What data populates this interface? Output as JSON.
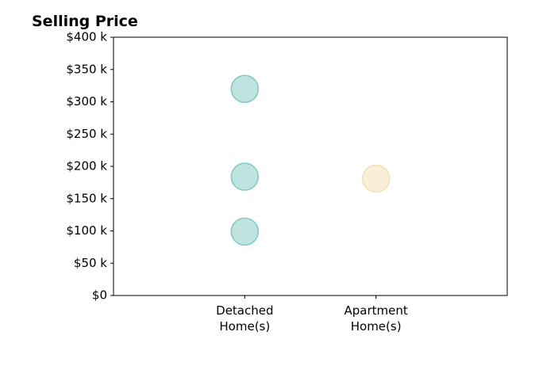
{
  "chart_data": {
    "type": "scatter",
    "title": "Selling Price",
    "categories": [
      "Detached\nHome(s)",
      "Apartment\nHome(s)"
    ],
    "series": [
      {
        "color": "#80c9c1",
        "x": [
          "Detached\nHome(s)",
          "Detached\nHome(s)",
          "Detached\nHome(s)"
        ],
        "values": [
          320000,
          184000,
          99000
        ]
      },
      {
        "color": "#f3dfb1",
        "x": [
          "Apartment\nHome(s)"
        ],
        "values": [
          181000
        ]
      }
    ],
    "ylim": [
      0,
      400000
    ],
    "yticks": [
      {
        "value": 0,
        "label": "$0"
      },
      {
        "value": 50000,
        "label": "$50 k"
      },
      {
        "value": 100000,
        "label": "$100 k"
      },
      {
        "value": 150000,
        "label": "$150 k"
      },
      {
        "value": 200000,
        "label": "$200 k"
      },
      {
        "value": 250000,
        "label": "$250 k"
      },
      {
        "value": 300000,
        "label": "$300 k"
      },
      {
        "value": 350000,
        "label": "$350 k"
      },
      {
        "value": 400000,
        "label": "$400 k"
      }
    ],
    "grid": false
  }
}
